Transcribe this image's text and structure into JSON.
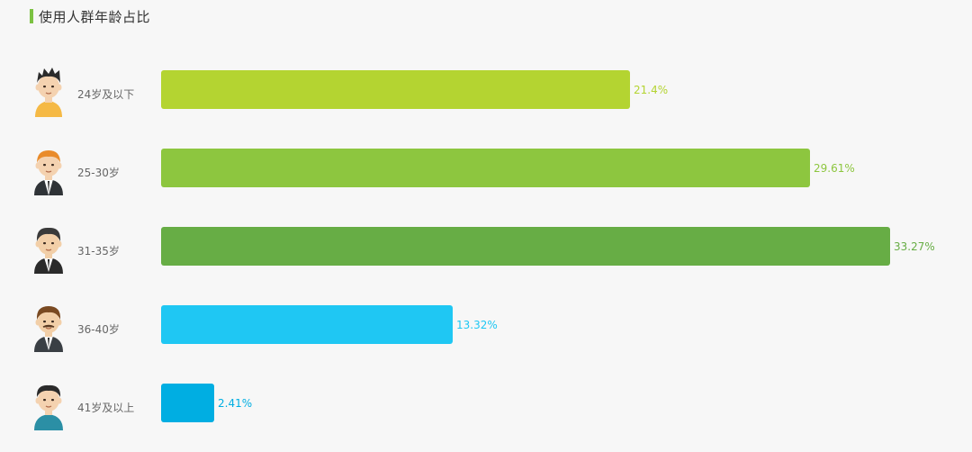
{
  "title": "使用人群年龄占比",
  "chart_data": {
    "type": "bar",
    "orientation": "horizontal",
    "title": "使用人群年龄占比",
    "categories": [
      "24岁及以下",
      "25-30岁",
      "31-35岁",
      "36-40岁",
      "41岁及以上"
    ],
    "values": [
      21.4,
      29.61,
      33.27,
      13.32,
      2.41
    ],
    "value_labels": [
      "21.4%",
      "29.61%",
      "33.27%",
      "13.32%",
      "2.41%"
    ],
    "colors": [
      "#b4d431",
      "#8dc63f",
      "#67ad45",
      "#1fc7f3",
      "#00aee2"
    ],
    "avatar_icons": [
      "boy-yellow-shirt-icon",
      "man-orange-hair-suit-icon",
      "man-black-suit-icon",
      "man-mustache-suit-icon",
      "man-teal-shirt-icon"
    ],
    "xlim": [
      0,
      33.27
    ],
    "grid": false,
    "legend": "none"
  }
}
